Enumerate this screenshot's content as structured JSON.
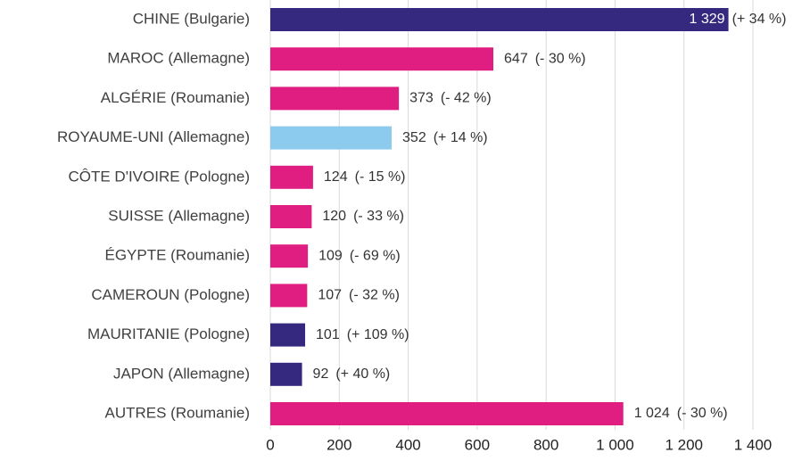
{
  "chart_data": {
    "type": "barh",
    "categories": [
      "CHINE (Bulgarie)",
      "MAROC (Allemagne)",
      "ALGÉRIE (Roumanie)",
      "ROYAUME-UNI (Allemagne)",
      "CÔTE D'IVOIRE (Pologne)",
      "SUISSE (Allemagne)",
      "ÉGYPTE (Roumanie)",
      "CAMEROUN (Pologne)",
      "MAURITANIE (Pologne)",
      "JAPON (Allemagne)",
      "AUTRES (Roumanie)"
    ],
    "values": [
      1329,
      647,
      373,
      352,
      124,
      120,
      109,
      107,
      101,
      92,
      1024
    ],
    "value_labels": [
      "1 329",
      "647",
      "373",
      "352",
      "124",
      "120",
      "109",
      "107",
      "101",
      "92",
      "1 024"
    ],
    "changes": [
      "(+ 34 %)",
      "(- 30 %)",
      "(- 42 %)",
      "(+ 14 %)",
      "(- 15 %)",
      "(- 33 %)",
      "(- 69 %)",
      "(- 32 %)",
      "(+ 109 %)",
      "(+ 40 %)",
      "(- 30 %)"
    ],
    "colors": [
      "#35287f",
      "#e01e82",
      "#e01e82",
      "#8ccbee",
      "#e01e82",
      "#e01e82",
      "#e01e82",
      "#e01e82",
      "#35287f",
      "#35287f",
      "#e01e82"
    ],
    "xlim": [
      0,
      1400
    ],
    "xticks": [
      0,
      200,
      400,
      600,
      800,
      {
        "value": 1000,
        "label": "1 000"
      },
      {
        "value": 1200,
        "label": "1 200"
      },
      {
        "value": 1400,
        "label": "1 400"
      }
    ],
    "grid": true
  }
}
